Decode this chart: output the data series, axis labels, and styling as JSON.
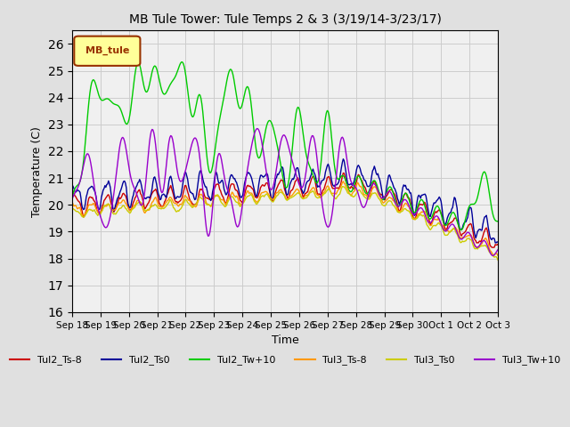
{
  "title": "MB Tule Tower: Tule Temps 2 & 3 (3/19/14-3/23/17)",
  "xlabel": "Time",
  "ylabel": "Temperature (C)",
  "ylim": [
    16.0,
    26.5
  ],
  "yticks": [
    16.0,
    17.0,
    18.0,
    19.0,
    20.0,
    21.0,
    22.0,
    23.0,
    24.0,
    25.0,
    26.0
  ],
  "legend_label": "MB_tule",
  "lines": {
    "Tul2_Ts-8": {
      "color": "#cc0000"
    },
    "Tul2_Ts0": {
      "color": "#000099"
    },
    "Tul2_Tw+10": {
      "color": "#00cc00"
    },
    "Tul3_Ts-8": {
      "color": "#ff9900"
    },
    "Tul3_Ts0": {
      "color": "#cccc00"
    },
    "Tul3_Tw+10": {
      "color": "#9900cc"
    }
  },
  "background_color": "#e0e0e0",
  "plot_bg_color": "#f0f0f0",
  "grid_color": "#cccccc",
  "xtick_labels": [
    "Sep 18",
    "Sep 19",
    "Sep 20",
    "Sep 21",
    "Sep 22",
    "Sep 23",
    "Sep 24",
    "Sep 25",
    "Sep 26",
    "Sep 27",
    "Sep 28",
    "Sep 29",
    "Sep 30",
    "Oct 1",
    "Oct 2",
    "Oct 3"
  ]
}
